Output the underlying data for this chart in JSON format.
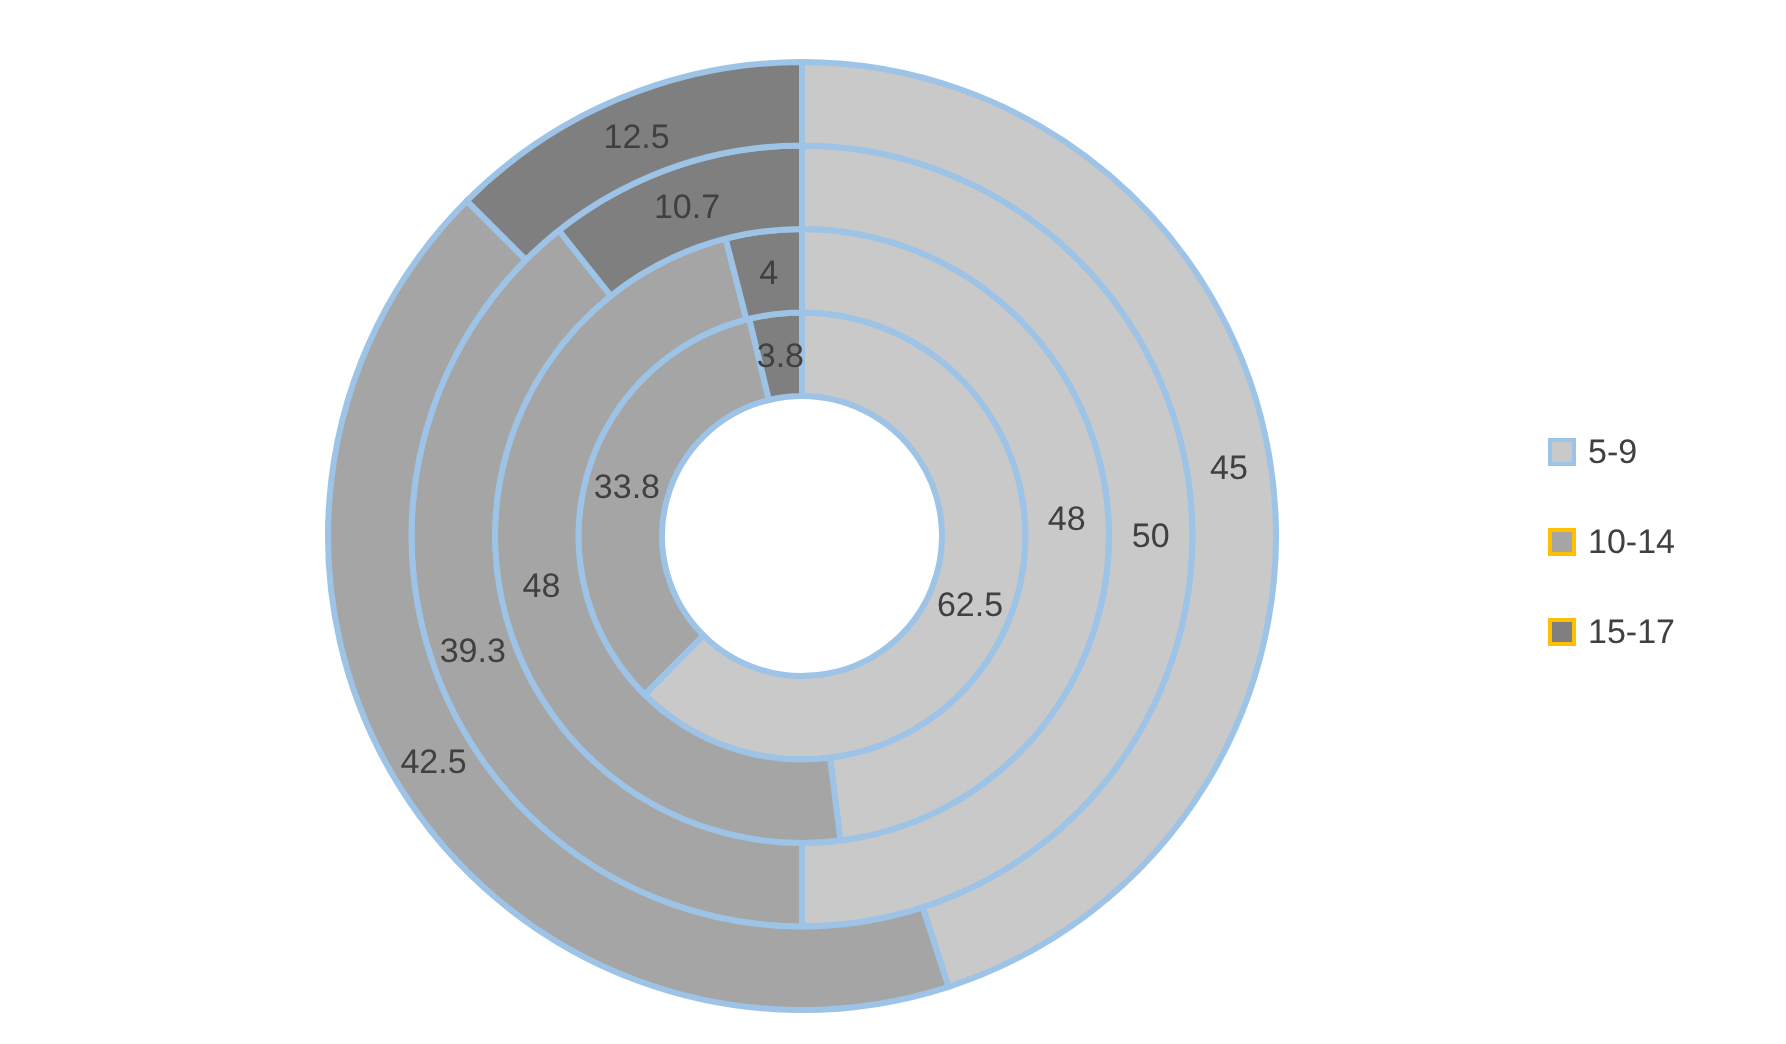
{
  "chart_data": {
    "type": "donut",
    "categories": [
      "5-9",
      "10-14",
      "15-17"
    ],
    "colors": [
      "#c9c9c9",
      "#a5a5a5",
      "#7f7f7f"
    ],
    "series": [
      {
        "values": [
          62.5,
          33.8,
          3.8
        ]
      },
      {
        "values": [
          48,
          48,
          4
        ]
      },
      {
        "values": [
          50,
          39.3,
          10.7
        ]
      },
      {
        "values": [
          45,
          42.5,
          12.5
        ]
      }
    ],
    "data_labels": true,
    "legend": "right"
  }
}
